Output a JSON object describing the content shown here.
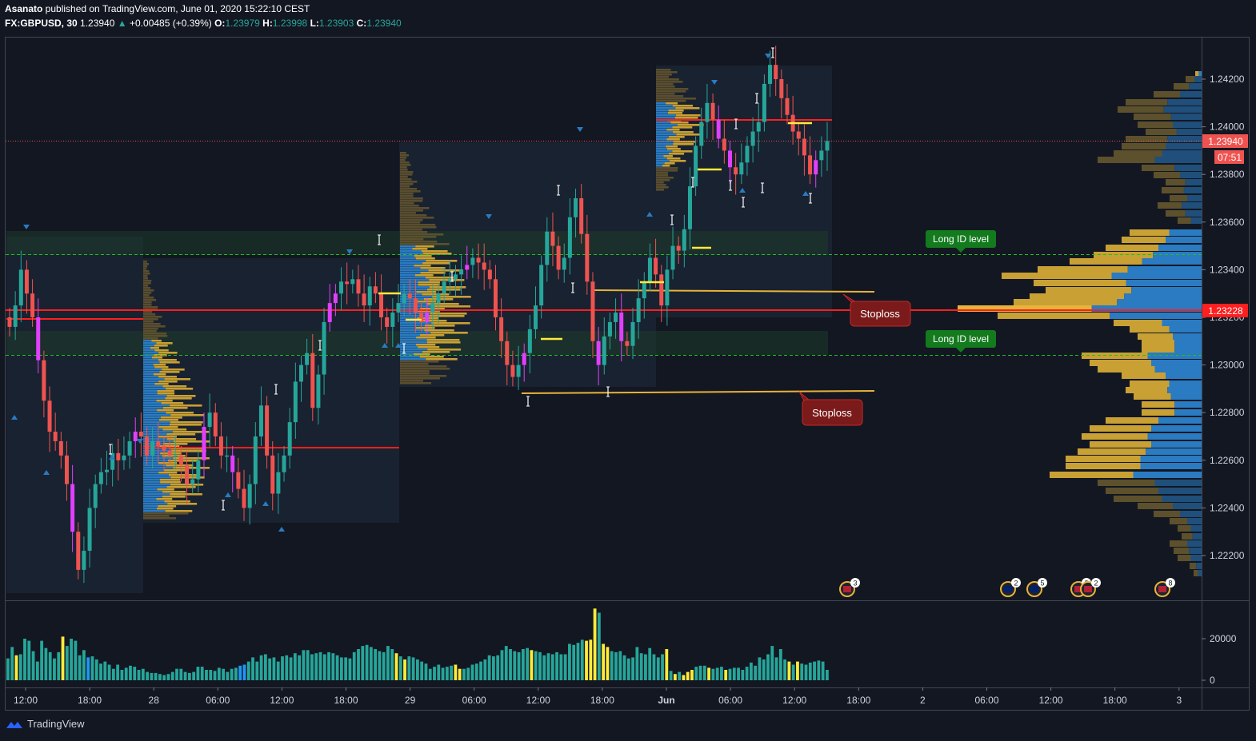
{
  "header": {
    "author": "Asanato",
    "published_text": " published on TradingView.com, June 01, 2020 15:22:10 CEST",
    "symbol": "FX:GBPUSD, 30",
    "last": "1.23940",
    "change": "+0.00485 (+0.39%)",
    "open_label": "O:",
    "open": "1.23979",
    "high_label": "H:",
    "high": "1.23998",
    "low_label": "L:",
    "low": "1.23903",
    "close_label": "C:",
    "close": "1.23940"
  },
  "colors": {
    "background": "#131722",
    "up": "#26a69a",
    "down": "#ef5350",
    "magenta": "#e040fb",
    "poc_line": "#ff1f1f",
    "value_area_blue": "#2a7bc2",
    "value_area_gold": "#c8a034",
    "long_label": "#137a1e",
    "stoploss_label": "#7a1a1a",
    "level_line": "#e8b339",
    "volume_teal": "#26a69a",
    "volume_yellow": "#ffeb3b"
  },
  "annotations": {
    "long_label_1": "Long ID level",
    "long_label_2": "Long ID level",
    "stoploss_1": "Stoploss",
    "stoploss_2": "Stoploss"
  },
  "price_axis": {
    "last_price_tag": "1.23940",
    "countdown_tag": "07:51",
    "poc_tag": "1.23228"
  },
  "event_badges": [
    "3",
    "2",
    "5",
    "2",
    "2",
    "8"
  ],
  "footer": {
    "brand": "TradingView",
    "logo_icon": "tradingview-logo-icon"
  },
  "chart_data": [
    {
      "type": "candlestick",
      "symbol": "FX:GBPUSD",
      "timeframe": "30",
      "x_ticks": [
        "12:00",
        "18:00",
        "28",
        "06:00",
        "12:00",
        "18:00",
        "29",
        "06:00",
        "12:00",
        "18:00",
        "Jun",
        "06:00",
        "12:00",
        "18:00",
        "2",
        "06:00",
        "12:00",
        "18:00",
        "3"
      ],
      "y_ticks": [
        "1.24200",
        "1.24000",
        "1.23800",
        "1.23600",
        "1.23400",
        "1.23200",
        "1.23000",
        "1.22800",
        "1.22600",
        "1.22400",
        "1.22200"
      ],
      "ylim": [
        1.2206,
        1.2437
      ],
      "last_price": 1.2394,
      "poc_price": 1.23228,
      "horizontal_levels": [
        {
          "label": "Long ID level",
          "price": 1.23465
        },
        {
          "label": "Long ID level",
          "price": 1.23043
        },
        {
          "label": "Stoploss",
          "price": 1.2331
        },
        {
          "label": "Stoploss",
          "price": 1.22892
        }
      ],
      "daily_poc_prices": [
        1.2318,
        1.2265,
        1.2323,
        1.2404
      ],
      "candles_close_path": [
        1.2316,
        1.2325,
        1.234,
        1.233,
        1.232,
        1.2302,
        1.2285,
        1.2272,
        1.2268,
        1.2262,
        1.225,
        1.223,
        1.2214,
        1.2222,
        1.224,
        1.225,
        1.2255,
        1.2256,
        1.2263,
        1.226,
        1.2262,
        1.2268,
        1.2272,
        1.227,
        1.2262,
        1.2268,
        1.2266,
        1.2264,
        1.2262,
        1.2262,
        1.2258,
        1.225,
        1.2252,
        1.226,
        1.2274,
        1.228,
        1.227,
        1.2262,
        1.2262,
        1.2255,
        1.2248,
        1.224,
        1.225,
        1.227,
        1.2283,
        1.2262,
        1.2246,
        1.2255,
        1.2262,
        1.2276,
        1.2293,
        1.23,
        1.2305,
        1.2282,
        1.2296,
        1.2318,
        1.2326,
        1.233,
        1.2335,
        1.2334,
        1.2336,
        1.233,
        1.2325,
        1.2333,
        1.233,
        1.232,
        1.2316,
        1.2322,
        1.2326,
        1.233,
        1.2328,
        1.2322,
        1.2318,
        1.2322,
        1.2326,
        1.233,
        1.2335,
        1.2336,
        1.2338,
        1.234,
        1.2342,
        1.2345,
        1.2343,
        1.234,
        1.2336,
        1.232,
        1.231,
        1.23,
        1.2295,
        1.23,
        1.2305,
        1.2315,
        1.2325,
        1.2342,
        1.2356,
        1.235,
        1.234,
        1.2345,
        1.2362,
        1.237,
        1.2355,
        1.2335,
        1.231,
        1.23,
        1.2312,
        1.2318,
        1.2322,
        1.231,
        1.2308,
        1.2318,
        1.2328,
        1.2335,
        1.2345,
        1.2338,
        1.2325,
        1.234,
        1.235,
        1.2348,
        1.2357,
        1.2375,
        1.2392,
        1.2402,
        1.241,
        1.2403,
        1.2395,
        1.239,
        1.2383,
        1.238,
        1.2385,
        1.2392,
        1.2398,
        1.2402,
        1.2418,
        1.2426,
        1.242,
        1.2412,
        1.2405,
        1.2398,
        1.2395,
        1.2388,
        1.238,
        1.2386,
        1.239,
        1.2394
      ]
    },
    {
      "type": "bar",
      "title": "Volume",
      "y_ticks": [
        "20000",
        "0"
      ],
      "ylim": [
        0,
        37000
      ],
      "x_ticks": [
        "12:00",
        "18:00",
        "28",
        "06:00",
        "12:00",
        "18:00",
        "29",
        "06:00",
        "12:00",
        "18:00",
        "Jun",
        "06:00",
        "12:00",
        "18:00",
        "2",
        "06:00",
        "12:00",
        "18:00",
        "3"
      ],
      "values": [
        10500,
        16000,
        12000,
        12500,
        20000,
        19000,
        14000,
        9000,
        19000,
        15500,
        13500,
        10500,
        13500,
        21000,
        16500,
        20000,
        19000,
        12000,
        14500,
        11000,
        11500,
        10000,
        8000,
        9000,
        7500,
        5500,
        7500,
        5000,
        6000,
        7000,
        6500,
        5000,
        5500,
        4000,
        3500,
        3500,
        3000,
        2500,
        3000,
        4000,
        5500,
        5500,
        4000,
        3500,
        4000,
        6500,
        6500,
        5000,
        5000,
        4500,
        6000,
        5500,
        4000,
        5500,
        6000,
        7000,
        7500,
        9000,
        11000,
        9000,
        12000,
        12500,
        10500,
        11000,
        9000,
        11500,
        12000,
        11000,
        13000,
        12000,
        14500,
        14500,
        12500,
        13000,
        13500,
        12500,
        13500,
        13000,
        12000,
        11000,
        11000,
        10500,
        13500,
        15000,
        16500,
        17000,
        16000,
        15000,
        14000,
        13500,
        16500,
        15000,
        13000,
        11500,
        10000,
        11500,
        11000,
        10000,
        9000,
        8000,
        5500,
        6500,
        7500,
        6000,
        6500,
        7000,
        7500,
        5500,
        5500,
        6000,
        7500,
        8000,
        9000,
        10000,
        12000,
        11500,
        12000,
        14500,
        16500,
        15000,
        14000,
        13500,
        15000,
        15500,
        14500,
        14000,
        13500,
        12000,
        13000,
        12500,
        13500,
        12500,
        12500,
        17500,
        17000,
        18000,
        19500,
        19000,
        19500,
        34500,
        32500,
        17500,
        16000,
        14000,
        13500,
        14000,
        12000,
        10500,
        11000,
        16000,
        13000,
        12500,
        15500,
        12500,
        11000,
        12500,
        15000,
        4500,
        3000,
        4000,
        2500,
        4000,
        5000,
        6500,
        7000,
        7000,
        6000,
        5500,
        6000,
        6500,
        5000,
        5500,
        6000,
        6000,
        5000,
        6500,
        8500,
        7000,
        11000,
        10000,
        12500,
        16500,
        11000,
        15000,
        10000,
        9000,
        7500,
        9000,
        8000,
        7500,
        8500,
        9000,
        9500,
        9000,
        5000
      ],
      "highlight_indices_yellow": [
        2,
        13,
        92,
        94,
        106,
        107,
        124,
        137,
        138,
        139,
        141,
        142,
        156,
        158,
        160,
        161,
        162,
        166,
        170,
        185,
        187
      ],
      "highlight_indices_blue": [
        19,
        55,
        56
      ]
    }
  ]
}
